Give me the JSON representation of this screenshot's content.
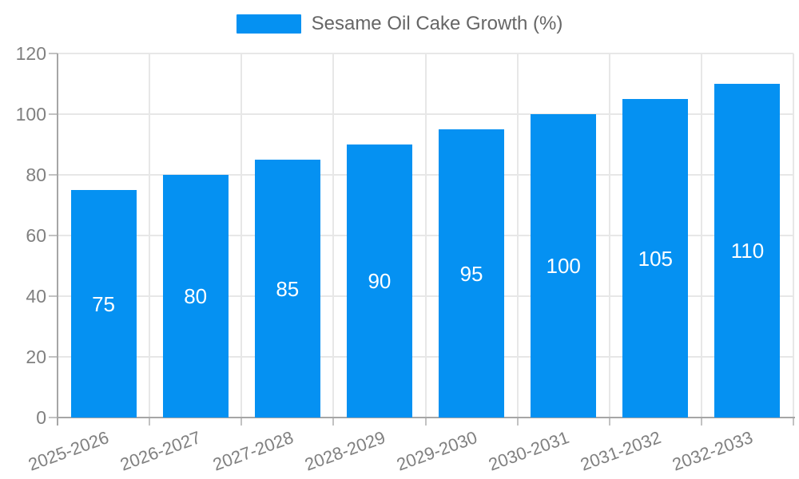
{
  "chart_data": {
    "type": "bar",
    "title": "",
    "legend": {
      "label": "Sesame Oil Cake Growth (%)",
      "position": "top"
    },
    "categories": [
      "2025-2026",
      "2026-2027",
      "2027-2028",
      "2028-2029",
      "2029-2030",
      "2030-2031",
      "2031-2032",
      "2032-2033"
    ],
    "values": [
      75,
      80,
      85,
      90,
      95,
      100,
      105,
      110
    ],
    "xlabel": "",
    "ylabel": "",
    "ylim": [
      0,
      120
    ],
    "yticks": [
      0,
      20,
      40,
      60,
      80,
      100,
      120
    ],
    "grid": true,
    "x_label_rotation_deg": -20,
    "colors": {
      "bar": "#0591f2",
      "value_label": "#ffffff",
      "axis": "#a6a6a6",
      "grid": "#e7e7e7",
      "tick": "#c2c2c2",
      "tick_label": "#808080",
      "legend_text": "#666666"
    }
  }
}
